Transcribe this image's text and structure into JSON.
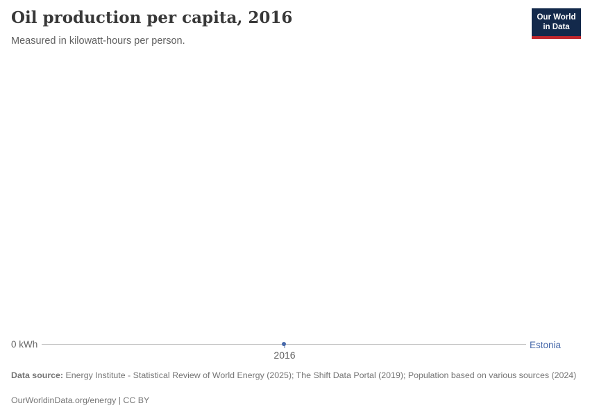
{
  "header": {
    "title": "Oil production per capita, 2016",
    "subtitle": "Measured in kilowatt-hours per person."
  },
  "logo": {
    "line1": "Our World",
    "line2": "in Data",
    "bg_color": "#13294b",
    "accent_color": "#c0272d"
  },
  "chart": {
    "y_zero_label": "0 kWh",
    "x_tick_label": "2016",
    "series_label": "Estonia",
    "series_color": "#4769aa",
    "axis_color": "#c4c4c4"
  },
  "chart_data": {
    "type": "line",
    "title": "Oil production per capita, 2016",
    "subtitle": "Measured in kilowatt-hours per person.",
    "unit": "kilowatt-hours per person",
    "x": [
      2016
    ],
    "x_ticks": [
      "2016"
    ],
    "y_ticks": [
      "0 kWh"
    ],
    "series": [
      {
        "name": "Estonia",
        "values": [
          0
        ],
        "color": "#4769aa"
      }
    ],
    "xlabel": "",
    "ylabel": "kWh",
    "ylim": [
      0,
      0
    ],
    "grid": false,
    "legend_position": "end-of-line"
  },
  "footer": {
    "datasource_label": "Data source:",
    "datasource_text": "Energy Institute - Statistical Review of World Energy (2025); The Shift Data Portal (2019); Population based on various sources (2024)",
    "link": "OurWorldinData.org/energy | CC BY"
  }
}
